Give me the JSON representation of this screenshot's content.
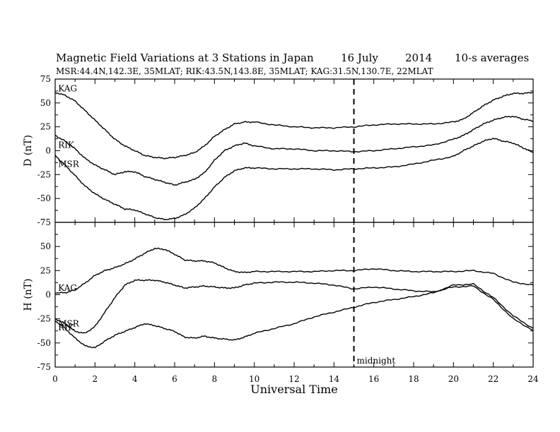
{
  "chart_data": {
    "type": "line",
    "title": {
      "main": "Magnetic Field Variations at 3 Stations in Japan",
      "date": "16 July",
      "year": "2014",
      "averaging": "10-s averages"
    },
    "subtitle": "MSR:44.4N,142.3E, 35MLAT;  RIK:43.5N,143.8E, 35MLAT;  KAG:31.5N,130.7E, 22MLAT",
    "xlabel": "Universal Time",
    "xlim": [
      0,
      24
    ],
    "xticks": [
      0,
      2,
      4,
      6,
      8,
      10,
      12,
      14,
      16,
      18,
      20,
      22,
      24
    ],
    "midnight": {
      "x": 15,
      "label": "midnight"
    },
    "grid": false,
    "panels": [
      {
        "id": "D",
        "ylabel": "D (nT)",
        "ylim": [
          -75,
          75
        ],
        "yticks": [
          75,
          50,
          25,
          0,
          -25,
          -50,
          -75
        ],
        "series": [
          {
            "name": "KAG",
            "x": [
              0,
              0.5,
              1,
              1.5,
              2,
              2.5,
              3,
              3.5,
              4,
              4.5,
              5,
              5.5,
              6,
              6.5,
              7,
              7.5,
              8,
              8.5,
              9,
              9.5,
              10,
              11,
              12,
              13,
              14,
              15,
              16,
              17,
              18,
              19,
              20,
              20.5,
              21,
              21.5,
              22,
              22.5,
              23,
              23.5,
              24
            ],
            "y": [
              61,
              58,
              52,
              42,
              32,
              22,
              12,
              5,
              0,
              -5,
              -7,
              -8,
              -7,
              -5,
              -2,
              5,
              15,
              22,
              28,
              30,
              30,
              27,
              25,
              24,
              24,
              25,
              27,
              28,
              28,
              28,
              30,
              33,
              40,
              47,
              53,
              57,
              60,
              60,
              61
            ]
          },
          {
            "name": "RIK",
            "x": [
              0,
              0.5,
              1,
              1.5,
              2,
              2.5,
              3,
              3.5,
              4,
              4.5,
              5,
              5.5,
              6,
              6.5,
              7,
              7.5,
              8,
              8.5,
              9,
              9.5,
              10,
              11,
              12,
              13,
              14,
              15,
              16,
              17,
              18,
              19,
              20,
              20.5,
              21,
              21.5,
              22,
              22.5,
              23,
              23.5,
              24
            ],
            "y": [
              16,
              10,
              2,
              -8,
              -15,
              -20,
              -25,
              -22,
              -22,
              -27,
              -30,
              -33,
              -36,
              -33,
              -30,
              -23,
              -10,
              0,
              5,
              8,
              5,
              2,
              2,
              0,
              0,
              -1,
              0,
              2,
              4,
              6,
              12,
              16,
              22,
              28,
              32,
              35,
              36,
              33,
              31
            ]
          },
          {
            "name": "MSR",
            "x": [
              0,
              0.5,
              1,
              1.5,
              2,
              2.5,
              3,
              3.5,
              4,
              4.5,
              5,
              5.5,
              6,
              6.5,
              7,
              7.5,
              8,
              8.5,
              9,
              9.5,
              10,
              11,
              12,
              13,
              14,
              15,
              16,
              17,
              18,
              19,
              20,
              20.5,
              21,
              21.5,
              22,
              22.5,
              23,
              23.5,
              24
            ],
            "y": [
              -5,
              -15,
              -26,
              -37,
              -45,
              -51,
              -56,
              -61,
              -62,
              -66,
              -70,
              -72,
              -71,
              -67,
              -60,
              -50,
              -38,
              -28,
              -21,
              -18,
              -18,
              -19,
              -19,
              -19,
              -20,
              -19,
              -18,
              -17,
              -14,
              -10,
              -6,
              0,
              5,
              10,
              13,
              10,
              8,
              3,
              -2
            ]
          }
        ],
        "labels": [
          {
            "series": "KAG",
            "text": "KAG",
            "x": 0.15,
            "y": 62
          },
          {
            "series": "RIK",
            "text": "RIK",
            "x": 0.15,
            "y": 3
          },
          {
            "series": "MSR",
            "text": "MSR",
            "x": 0.15,
            "y": -17
          }
        ]
      },
      {
        "id": "H",
        "ylabel": "H (nT)",
        "ylim": [
          -75,
          75
        ],
        "yticks": [
          50,
          25,
          0,
          -25,
          -50,
          -75
        ],
        "series": [
          {
            "name": "KAG",
            "x": [
              0,
              0.5,
              1,
              1.5,
              2,
              2.5,
              3,
              3.5,
              4,
              4.5,
              5,
              5.5,
              6,
              6.5,
              7,
              7.5,
              8,
              8.5,
              9,
              9.5,
              10,
              11,
              12,
              13,
              14,
              15,
              16,
              17,
              18,
              19,
              20,
              21,
              22,
              23,
              24
            ],
            "y": [
              2,
              2,
              5,
              12,
              20,
              25,
              28,
              32,
              37,
              43,
              48,
              47,
              42,
              36,
              35,
              35,
              33,
              28,
              24,
              23,
              24,
              24,
              24,
              24,
              25,
              25,
              27,
              25,
              24,
              24,
              24,
              25,
              22,
              13,
              10
            ]
          },
          {
            "name": "RIK",
            "x": [
              0,
              0.5,
              1,
              1.5,
              2,
              2.5,
              3,
              3.5,
              4,
              4.5,
              5,
              5.5,
              6,
              6.5,
              7,
              7.5,
              8,
              8.5,
              9,
              9.5,
              10,
              11,
              12,
              13,
              14,
              15,
              16,
              17,
              18,
              19,
              20,
              21,
              22,
              23,
              24
            ],
            "y": [
              -25,
              -30,
              -38,
              -40,
              -33,
              -18,
              -3,
              10,
              15,
              15,
              15,
              13,
              10,
              7,
              8,
              9,
              8,
              7,
              7,
              10,
              12,
              13,
              13,
              12,
              10,
              6,
              8,
              6,
              4,
              3,
              8,
              9,
              -5,
              -25,
              -37
            ]
          },
          {
            "name": "MSR",
            "x": [
              0,
              0.5,
              1,
              1.5,
              2,
              2.5,
              3,
              3.5,
              4,
              4.5,
              5,
              5.5,
              6,
              6.5,
              7,
              7.5,
              8,
              8.5,
              9,
              9.5,
              10,
              11,
              12,
              13,
              14,
              15,
              16,
              17,
              18,
              19,
              20,
              21,
              22,
              23,
              24
            ],
            "y": [
              -27,
              -35,
              -45,
              -53,
              -55,
              -48,
              -42,
              -38,
              -34,
              -30,
              -32,
              -35,
              -38,
              -44,
              -45,
              -43,
              -45,
              -46,
              -47,
              -44,
              -40,
              -35,
              -30,
              -23,
              -18,
              -13,
              -8,
              -5,
              -2,
              2,
              10,
              11,
              -3,
              -22,
              -35
            ]
          }
        ],
        "labels": [
          {
            "series": "KAG",
            "text": "KAG",
            "x": 0.15,
            "y": 4
          },
          {
            "series": "MSR",
            "text": "MSR",
            "x": 0.15,
            "y": -33
          },
          {
            "series": "RIK",
            "text": "RIK",
            "x": 0.15,
            "y": -37
          }
        ]
      }
    ]
  }
}
